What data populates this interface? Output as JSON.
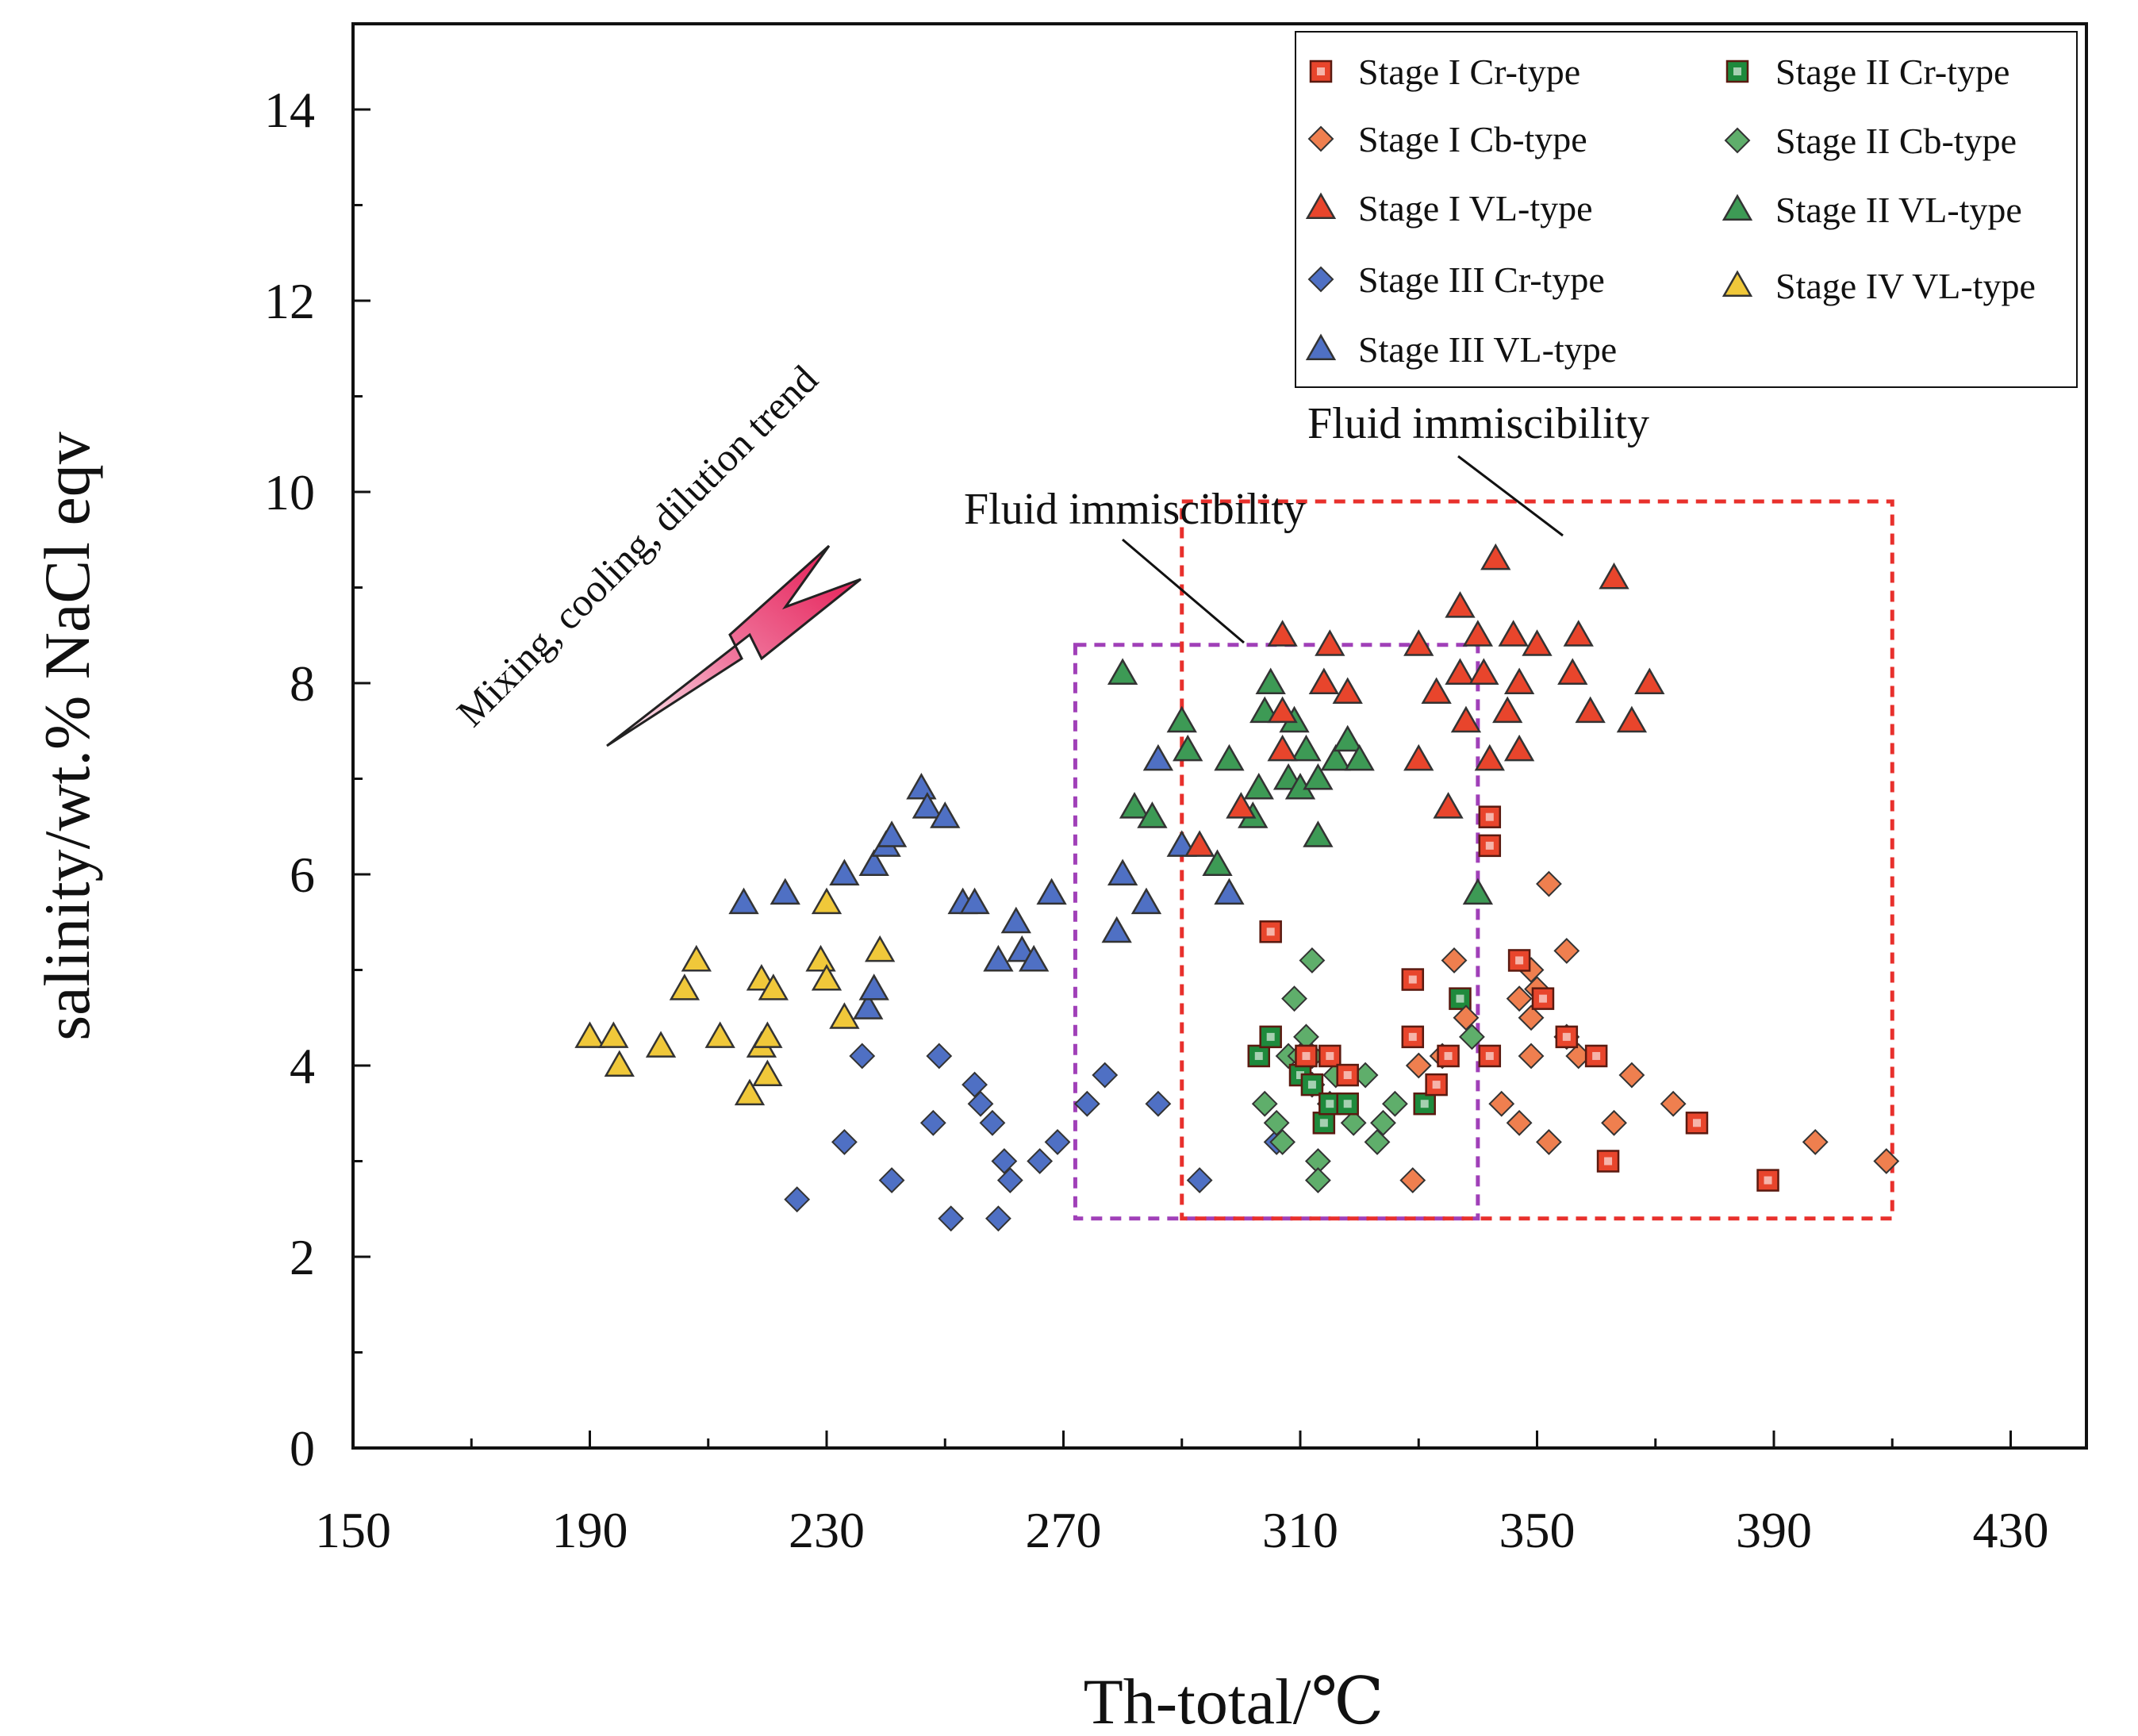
{
  "chart_data": {
    "type": "scatter",
    "xlabel": "Th-total/℃",
    "ylabel": "salinity/wt.% NaCl eqv",
    "xlim": [
      150,
      440
    ],
    "ylim": [
      0,
      15
    ],
    "xticks": [
      150,
      190,
      230,
      270,
      310,
      350,
      390,
      430
    ],
    "yticks": [
      0,
      2,
      4,
      6,
      8,
      10,
      12,
      14
    ],
    "xtick_labels": [
      "150",
      "190",
      "230",
      "270",
      "310",
      "350",
      "390",
      "430"
    ],
    "ytick_labels": [
      "0",
      "2",
      "4",
      "6",
      "8",
      "10",
      "12",
      "14"
    ],
    "grid": false,
    "legend_position": "top-right",
    "series": [
      {
        "name": "Stage I  Cr-type",
        "marker": "square",
        "color": "#e8452c",
        "points": [
          [
            305,
            5.4
          ],
          [
            311,
            4.1
          ],
          [
            315,
            4.1
          ],
          [
            318,
            3.9
          ],
          [
            329,
            4.9
          ],
          [
            329,
            4.3
          ],
          [
            333,
            3.8
          ],
          [
            335,
            4.1
          ],
          [
            342,
            4.1
          ],
          [
            342,
            6.6
          ],
          [
            342,
            6.3
          ],
          [
            347,
            5.1
          ],
          [
            351,
            4.7
          ],
          [
            355,
            4.3
          ],
          [
            360,
            4.1
          ],
          [
            362,
            3.0
          ],
          [
            377,
            3.4
          ],
          [
            389,
            2.8
          ]
        ]
      },
      {
        "name": "Stage I  Cb-type",
        "marker": "diamond",
        "color": "#ef7f4f",
        "points": [
          [
            329,
            2.8
          ],
          [
            330,
            4.0
          ],
          [
            334,
            4.1
          ],
          [
            336,
            5.1
          ],
          [
            338,
            4.5
          ],
          [
            344,
            3.6
          ],
          [
            347,
            3.4
          ],
          [
            347,
            4.7
          ],
          [
            349,
            5.0
          ],
          [
            349,
            4.1
          ],
          [
            349,
            4.5
          ],
          [
            350,
            4.8
          ],
          [
            352,
            3.2
          ],
          [
            352,
            5.9
          ],
          [
            355,
            5.2
          ],
          [
            355,
            4.3
          ],
          [
            357,
            4.1
          ],
          [
            363,
            3.4
          ],
          [
            366,
            3.9
          ],
          [
            373,
            3.6
          ],
          [
            397,
            3.2
          ],
          [
            409,
            3.0
          ]
        ]
      },
      {
        "name": "Stage I  VL-type",
        "marker": "triangle",
        "color": "#e8452c",
        "points": [
          [
            293,
            6.3
          ],
          [
            300,
            6.7
          ],
          [
            307,
            8.5
          ],
          [
            307,
            7.7
          ],
          [
            307,
            7.3
          ],
          [
            314,
            8.0
          ],
          [
            315,
            8.4
          ],
          [
            318,
            7.9
          ],
          [
            330,
            8.4
          ],
          [
            330,
            7.2
          ],
          [
            333,
            7.9
          ],
          [
            335,
            6.7
          ],
          [
            337,
            8.8
          ],
          [
            337,
            8.1
          ],
          [
            338,
            7.6
          ],
          [
            340,
            8.5
          ],
          [
            341,
            8.1
          ],
          [
            342,
            7.2
          ],
          [
            343,
            9.3
          ],
          [
            345,
            7.7
          ],
          [
            346,
            8.5
          ],
          [
            347,
            8.0
          ],
          [
            347,
            7.3
          ],
          [
            350,
            8.4
          ],
          [
            356,
            8.1
          ],
          [
            357,
            8.5
          ],
          [
            359,
            7.7
          ],
          [
            363,
            9.1
          ],
          [
            366,
            7.6
          ],
          [
            369,
            8.0
          ]
        ]
      },
      {
        "name": "Stage III  Cr-type",
        "marker": "diamond",
        "color": "#4f70c4",
        "points": [
          [
            225,
            2.6
          ],
          [
            233,
            3.2
          ],
          [
            236,
            4.1
          ],
          [
            241,
            2.8
          ],
          [
            248,
            3.4
          ],
          [
            249,
            4.1
          ],
          [
            251,
            2.4
          ],
          [
            255,
            3.8
          ],
          [
            256,
            3.6
          ],
          [
            258,
            3.4
          ],
          [
            259,
            2.4
          ],
          [
            260,
            3.0
          ],
          [
            261,
            2.8
          ],
          [
            266,
            3.0
          ],
          [
            269,
            3.2
          ],
          [
            274,
            3.6
          ],
          [
            277,
            3.9
          ],
          [
            286,
            3.6
          ],
          [
            293,
            2.8
          ],
          [
            306,
            3.2
          ]
        ]
      },
      {
        "name": "Stage III  VL-type",
        "marker": "triangle",
        "color": "#4f70c4",
        "points": [
          [
            216,
            5.7
          ],
          [
            223,
            5.8
          ],
          [
            233,
            6.0
          ],
          [
            237,
            4.6
          ],
          [
            238,
            4.8
          ],
          [
            238,
            6.1
          ],
          [
            240,
            6.3
          ],
          [
            241,
            6.4
          ],
          [
            246,
            6.9
          ],
          [
            247,
            6.7
          ],
          [
            250,
            6.6
          ],
          [
            253,
            5.7
          ],
          [
            255,
            5.7
          ],
          [
            259,
            5.1
          ],
          [
            262,
            5.5
          ],
          [
            263,
            5.2
          ],
          [
            265,
            5.1
          ],
          [
            268,
            5.8
          ],
          [
            279,
            5.4
          ],
          [
            280,
            6.0
          ],
          [
            284,
            5.7
          ],
          [
            286,
            7.2
          ],
          [
            290,
            6.3
          ],
          [
            298,
            5.8
          ]
        ]
      },
      {
        "name": "Stage II  Cr-type",
        "marker": "square",
        "color": "#1e8a3c",
        "points": [
          [
            303,
            4.1
          ],
          [
            305,
            4.3
          ],
          [
            310,
            3.9
          ],
          [
            312,
            3.8
          ],
          [
            314,
            3.4
          ],
          [
            315,
            3.6
          ],
          [
            318,
            3.6
          ],
          [
            331,
            3.6
          ],
          [
            337,
            4.7
          ]
        ]
      },
      {
        "name": "Stage II  Cb-type",
        "marker": "diamond",
        "color": "#5fae6b",
        "points": [
          [
            304,
            3.6
          ],
          [
            306,
            3.4
          ],
          [
            307,
            3.2
          ],
          [
            308,
            4.1
          ],
          [
            309,
            4.7
          ],
          [
            310,
            4.1
          ],
          [
            311,
            4.3
          ],
          [
            312,
            3.8
          ],
          [
            312,
            5.1
          ],
          [
            312,
            4.1
          ],
          [
            313,
            3.0
          ],
          [
            313,
            2.8
          ],
          [
            315,
            3.6
          ],
          [
            316,
            3.9
          ],
          [
            319,
            3.4
          ],
          [
            321,
            3.9
          ],
          [
            323,
            3.2
          ],
          [
            324,
            3.4
          ],
          [
            326,
            3.6
          ],
          [
            339,
            4.3
          ]
        ]
      },
      {
        "name": "Stage II  VL-type",
        "marker": "triangle",
        "color": "#3d9a55",
        "points": [
          [
            280,
            8.1
          ],
          [
            282,
            6.7
          ],
          [
            285,
            6.6
          ],
          [
            290,
            7.6
          ],
          [
            291,
            7.3
          ],
          [
            296,
            6.1
          ],
          [
            298,
            7.2
          ],
          [
            302,
            6.6
          ],
          [
            303,
            6.9
          ],
          [
            304,
            7.7
          ],
          [
            305,
            8.0
          ],
          [
            308,
            7.0
          ],
          [
            309,
            7.6
          ],
          [
            310,
            6.9
          ],
          [
            311,
            7.3
          ],
          [
            313,
            7.0
          ],
          [
            313,
            6.4
          ],
          [
            316,
            7.2
          ],
          [
            318,
            7.4
          ],
          [
            320,
            7.2
          ],
          [
            340,
            5.8
          ]
        ]
      },
      {
        "name": "Stage IV  VL-type",
        "marker": "triangle",
        "color": "#f0c83a",
        "points": [
          [
            190,
            4.3
          ],
          [
            194,
            4.3
          ],
          [
            195,
            4.0
          ],
          [
            202,
            4.2
          ],
          [
            206,
            4.8
          ],
          [
            208,
            5.1
          ],
          [
            212,
            4.3
          ],
          [
            217,
            3.7
          ],
          [
            219,
            4.9
          ],
          [
            219,
            4.2
          ],
          [
            220,
            3.9
          ],
          [
            220,
            4.3
          ],
          [
            221,
            4.8
          ],
          [
            229,
            5.1
          ],
          [
            230,
            4.9
          ],
          [
            230,
            5.7
          ],
          [
            233,
            4.5
          ],
          [
            239,
            5.2
          ]
        ]
      }
    ],
    "regions": [
      {
        "color": "#a040b8",
        "x": [
          272,
          340
        ],
        "y": [
          2.4,
          8.4
        ]
      },
      {
        "color": "#e8302c",
        "x": [
          290,
          410
        ],
        "y": [
          2.4,
          9.9
        ]
      }
    ],
    "annotations": {
      "trend": "Mixing, cooling, dilution trend",
      "immiscibility_1": "Fluid immiscibility",
      "immiscibility_2": "Fluid immiscibility"
    }
  }
}
